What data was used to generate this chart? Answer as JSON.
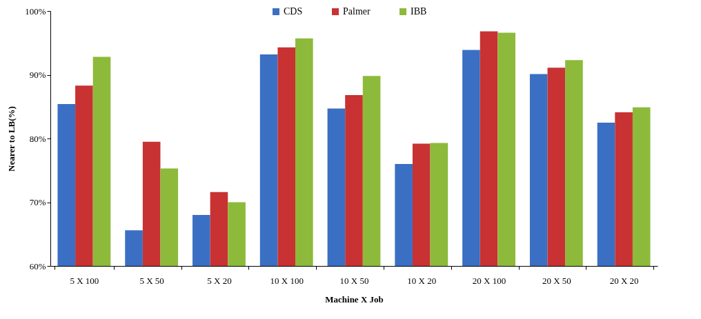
{
  "chart_data": {
    "type": "bar",
    "xlabel": "Machine X Job",
    "ylabel": "Nearer to LB(%)",
    "categories": [
      "5 X 100",
      "5 X 50",
      "5 X 20",
      "10 X 100",
      "10 X 50",
      "10 X 20",
      "20 X 100",
      "20 X 50",
      "20 X 20"
    ],
    "series": [
      {
        "name": "CDS",
        "color": "#3a6fc4",
        "values": [
          85.4,
          65.6,
          68.0,
          93.2,
          84.7,
          76.0,
          93.9,
          90.1,
          82.5
        ]
      },
      {
        "name": "Palmer",
        "color": "#c83232",
        "values": [
          88.3,
          79.5,
          71.6,
          94.3,
          86.8,
          79.2,
          96.8,
          91.1,
          84.1
        ]
      },
      {
        "name": "IBB",
        "color": "#8dba3a",
        "values": [
          92.8,
          75.3,
          70.0,
          95.7,
          89.8,
          79.3,
          96.6,
          92.3,
          84.9
        ]
      }
    ],
    "ylim": [
      60,
      100
    ],
    "yticks": [
      {
        "value": 60,
        "label": "60%"
      },
      {
        "value": 70,
        "label": "70%"
      },
      {
        "value": 80,
        "label": "80%"
      },
      {
        "value": 90,
        "label": "90%"
      },
      {
        "value": 100,
        "label": "100%"
      }
    ],
    "grid": false,
    "legend": "top"
  }
}
